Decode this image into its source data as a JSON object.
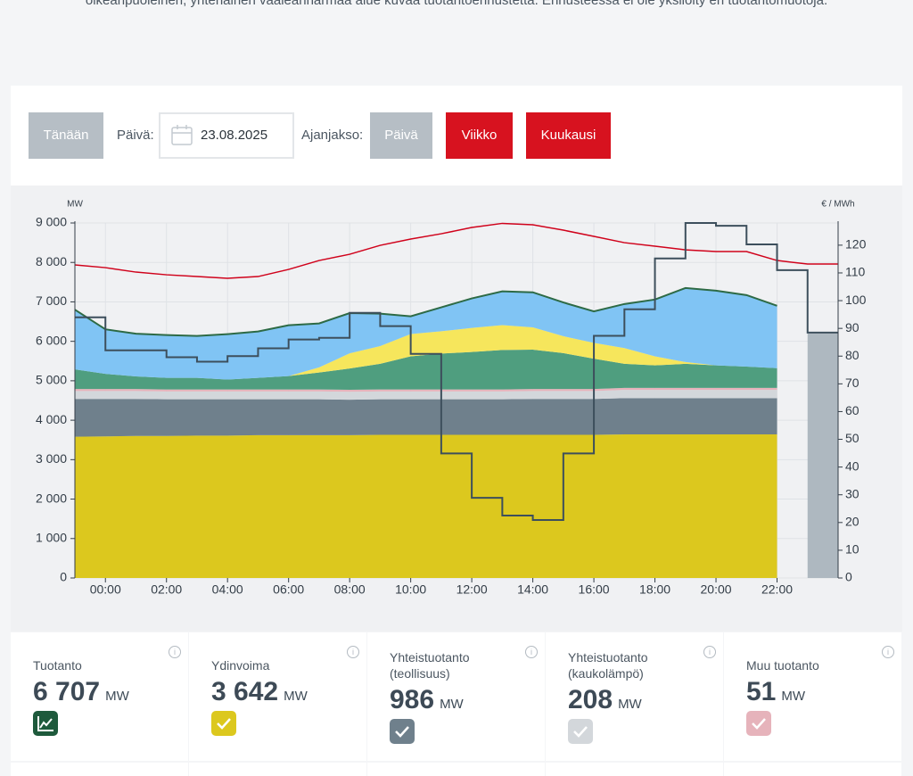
{
  "intro_text": "oikeanpuoleinen, yhtenäinen vaaleanharmaa alue kuvaa tuotantoennustetta. Ennusteessa ei ole yksilöity eri tuotantomuotoja.",
  "controls": {
    "today": "Tänään",
    "date_label": "Päivä:",
    "date": "23.08.2025",
    "period_label": "Ajanjakso:",
    "periods": [
      "Päivä",
      "Viikko",
      "Kuukausi"
    ]
  },
  "chart_data": {
    "type": "area",
    "ylabel": "MW",
    "y2label": "€ / MWh",
    "x": [
      -1,
      0,
      1,
      2,
      3,
      4,
      5,
      6,
      7,
      8,
      9,
      10,
      11,
      12,
      13,
      14,
      15,
      16,
      17,
      18,
      19,
      20,
      21,
      22,
      23,
      24
    ],
    "xlim": [
      -1,
      24
    ],
    "xticks": [
      {
        "value": 0,
        "label": "00:00"
      },
      {
        "value": 2,
        "label": "02:00"
      },
      {
        "value": 4,
        "label": "04:00"
      },
      {
        "value": 6,
        "label": "06:00"
      },
      {
        "value": 8,
        "label": "08:00"
      },
      {
        "value": 10,
        "label": "10:00"
      },
      {
        "value": 12,
        "label": "12:00"
      },
      {
        "value": 14,
        "label": "14:00"
      },
      {
        "value": 16,
        "label": "16:00"
      },
      {
        "value": 18,
        "label": "18:00"
      },
      {
        "value": 20,
        "label": "20:00"
      },
      {
        "value": 22,
        "label": "22:00"
      }
    ],
    "ylim": [
      0,
      9000
    ],
    "yticks": [
      0,
      {
        "value": 1000,
        "label": "1 000"
      },
      {
        "value": 2000,
        "label": "2 000"
      },
      {
        "value": 3000,
        "label": "3 000"
      },
      {
        "value": 4000,
        "label": "4 000"
      },
      {
        "value": 5000,
        "label": "5 000"
      },
      {
        "value": 6000,
        "label": "6 000"
      },
      {
        "value": 7000,
        "label": "7 000"
      },
      {
        "value": 8000,
        "label": "8 000"
      },
      {
        "value": 9000,
        "label": "9 000"
      }
    ],
    "y2lim": [
      0,
      128
    ],
    "y2ticks": [
      0,
      10,
      20,
      30,
      40,
      50,
      60,
      70,
      80,
      90,
      100,
      110,
      120
    ],
    "grid": true,
    "series": [
      {
        "color": "#dcc81e",
        "stack": true,
        "values": [
          3580,
          3590,
          3600,
          3600,
          3610,
          3610,
          3620,
          3620,
          3620,
          3620,
          3630,
          3630,
          3630,
          3630,
          3630,
          3630,
          3630,
          3630,
          3640,
          3640,
          3640,
          3640,
          3640,
          3640,
          null,
          null
        ]
      },
      {
        "color": "#6f808c",
        "stack": true,
        "values": [
          960,
          950,
          940,
          930,
          920,
          920,
          910,
          910,
          910,
          900,
          900,
          900,
          900,
          900,
          900,
          910,
          910,
          910,
          920,
          920,
          920,
          920,
          920,
          920,
          null,
          null
        ]
      },
      {
        "color": "#d3d7db",
        "stack": true,
        "values": [
          200,
          200,
          200,
          200,
          200,
          200,
          200,
          200,
          200,
          200,
          200,
          200,
          200,
          200,
          200,
          200,
          200,
          200,
          208,
          208,
          208,
          208,
          208,
          208,
          null,
          null
        ]
      },
      {
        "color": "#e6b3bb",
        "stack": true,
        "values": [
          50,
          50,
          50,
          50,
          50,
          50,
          50,
          50,
          50,
          50,
          50,
          50,
          50,
          50,
          50,
          50,
          50,
          50,
          51,
          51,
          51,
          51,
          51,
          51,
          null,
          null
        ]
      },
      {
        "color": "#4f9e7f",
        "stack": true,
        "values": [
          500,
          385,
          320,
          295,
          295,
          250,
          295,
          340,
          430,
          540,
          650,
          840,
          910,
          950,
          1000,
          1000,
          910,
          770,
          610,
          570,
          610,
          570,
          540,
          500,
          null,
          null
        ]
      },
      {
        "color": "#f6e65c",
        "stack": true,
        "values": [
          0,
          0,
          0,
          0,
          0,
          0,
          0,
          0,
          130,
          385,
          450,
          565,
          565,
          610,
          630,
          565,
          430,
          400,
          400,
          230,
          45,
          0,
          0,
          0,
          null,
          null
        ]
      },
      {
        "color": "#80c4f4",
        "outline": "#2d6a45",
        "stack": true,
        "values": [
          1513,
          1130,
          1082,
          1085,
          1062,
          1152,
          1175,
          1288,
          1114,
          1020,
          823,
          450,
          606,
          748,
          858,
          888,
          855,
          798,
          1117,
          1440,
          1878,
          1895,
          1813,
          1581,
          null,
          null
        ]
      },
      {
        "color": "#aeb8c0",
        "stack": false,
        "values": [
          null,
          null,
          null,
          null,
          null,
          null,
          null,
          null,
          null,
          null,
          null,
          null,
          null,
          null,
          null,
          null,
          null,
          null,
          null,
          null,
          null,
          null,
          null,
          null,
          6200,
          6200
        ]
      },
      {
        "color": "#d0021b",
        "line": true,
        "values": [
          7936,
          7868,
          7755,
          7687,
          7642,
          7597,
          7642,
          7823,
          8049,
          8207,
          8433,
          8592,
          8727,
          8886,
          8990,
          8954,
          8818,
          8660,
          8501,
          8411,
          8320,
          8275,
          8275,
          8049,
          7959,
          7959
        ]
      },
      {
        "color": "#3d4f5c",
        "line": true,
        "step": true,
        "axis": "y2",
        "values": [
          94,
          82.1,
          82.1,
          79.6,
          78,
          80,
          82.8,
          86,
          86.6,
          95.6,
          90.8,
          80.8,
          44.9,
          28.9,
          22.5,
          20.9,
          44.9,
          87.3,
          96.9,
          115.2,
          128,
          127,
          120.3,
          111,
          88.5,
          88.5
        ]
      }
    ]
  },
  "cards": [
    {
      "title": "Tuotanto",
      "value": "6 707",
      "unit": "MW",
      "color": "#1e5a3c"
    },
    {
      "title": "Ydinvoima",
      "value": "3 642",
      "unit": "MW",
      "color": "#dcc81e"
    },
    {
      "title": "Yhteistuotanto (teollisuus)",
      "value": "986",
      "unit": "MW",
      "color": "#6f808c"
    },
    {
      "title": "Yhteistuotanto (kaukolämpö)",
      "value": "208",
      "unit": "MW",
      "color": "#d3d7db"
    },
    {
      "title": "Muu tuotanto",
      "value": "51",
      "unit": "MW",
      "color": "#e6b3bb"
    }
  ]
}
